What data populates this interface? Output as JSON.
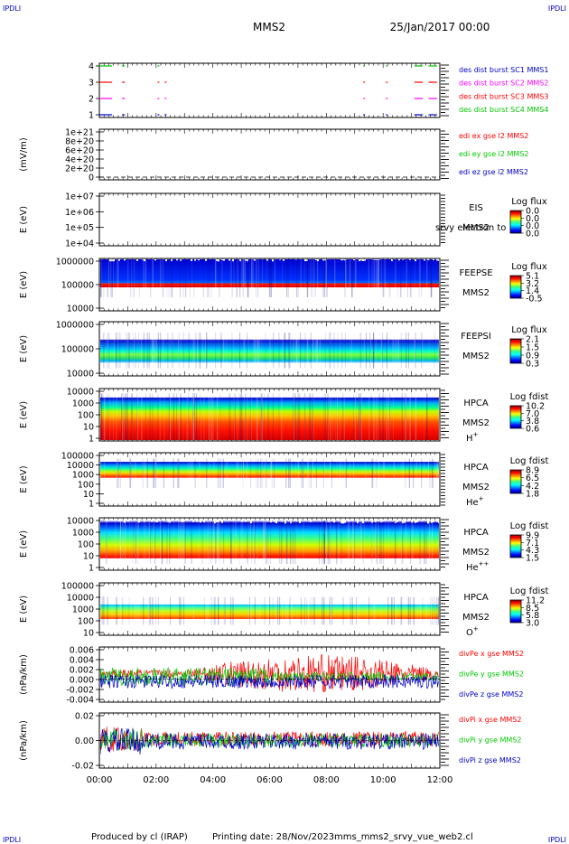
{
  "header": {
    "corner_left": "IPDLI",
    "corner_right": "IPDLI",
    "spacecraft": "MMS2",
    "date": "25/Jan/2017 00:00"
  },
  "footer": {
    "corner_left": "IPDLI",
    "corner_right": "IPDLI",
    "produced_by": "Produced by cl (IRAP)",
    "printing_date": "Printing date: 28/Nov/2023",
    "filename": "mms_mms2_srvy_vue_web2.cl"
  },
  "colors": {
    "black": "#000000",
    "red": "#ff0000",
    "green": "#00c800",
    "blue": "#0000c8",
    "magenta": "#ff00ff"
  },
  "chart_data": {
    "type": "multi-panel time series",
    "xaxis": {
      "ticks": [
        "00:00",
        "02:00",
        "04:00",
        "06:00",
        "08:00",
        "10:00",
        "12:00"
      ],
      "range_hours": [
        0,
        12
      ]
    },
    "panels": [
      {
        "id": "burst",
        "type": "timeline",
        "yticks": [
          "4",
          "3",
          "2",
          "1"
        ],
        "legend": [
          {
            "text": "des dist burst SC1 MMS1",
            "color": "#0000c8"
          },
          {
            "text": "des dist burst SC2 MMS2",
            "color": "#ff00ff"
          },
          {
            "text": "des dist burst SC3 MMS3",
            "color": "#ff0000"
          },
          {
            "text": "des dist burst SC4 MMS4",
            "color": "#00c800"
          }
        ],
        "segments": [
          {
            "row": 4,
            "color": "#00c800",
            "intervals": [
              [
                0.0,
                0.45
              ],
              [
                0.8,
                0.9
              ],
              [
                2.05,
                2.1
              ],
              [
                9.3,
                9.35
              ],
              [
                10.1,
                10.15
              ],
              [
                11.1,
                11.4
              ],
              [
                11.6,
                11.9
              ]
            ]
          },
          {
            "row": 3,
            "color": "#ff0000",
            "intervals": [
              [
                0.0,
                0.45
              ],
              [
                0.8,
                0.9
              ],
              [
                2.05,
                2.1
              ],
              [
                2.3,
                2.35
              ],
              [
                9.3,
                9.35
              ],
              [
                10.1,
                10.15
              ],
              [
                11.1,
                11.4
              ],
              [
                11.6,
                11.9
              ]
            ]
          },
          {
            "row": 2,
            "color": "#ff00ff",
            "intervals": [
              [
                0.0,
                0.45
              ],
              [
                0.8,
                0.9
              ],
              [
                2.05,
                2.1
              ],
              [
                2.3,
                2.35
              ],
              [
                9.3,
                9.35
              ],
              [
                10.1,
                10.15
              ],
              [
                11.1,
                11.4
              ],
              [
                11.6,
                11.9
              ]
            ]
          },
          {
            "row": 1,
            "color": "#0000c8",
            "intervals": [
              [
                0.0,
                0.45
              ],
              [
                0.8,
                0.9
              ],
              [
                2.05,
                2.1
              ],
              [
                2.3,
                2.35
              ],
              [
                9.3,
                9.35
              ],
              [
                10.1,
                10.15
              ],
              [
                11.1,
                11.4
              ],
              [
                11.6,
                11.9
              ]
            ]
          }
        ]
      },
      {
        "id": "edi",
        "type": "line",
        "ylabel": "(mV/m)",
        "yticks": [
          "1e+21",
          "8e+20",
          "6e+20",
          "4e+20",
          "2e+20",
          "0"
        ],
        "legend": [
          {
            "text": "edi ex gse l2 MMS2",
            "color": "#ff0000"
          },
          {
            "text": "edi ey gse l2 MMS2",
            "color": "#00c800"
          },
          {
            "text": "edi ez gse l2 MMS2",
            "color": "#0000c8"
          }
        ]
      },
      {
        "id": "eis",
        "type": "spectrogram",
        "ylabel": "E (eV)",
        "yticks": [
          "1e+07",
          "1e+06",
          "1e+05",
          "1e+04"
        ],
        "instrument": [
          "EIS",
          "MMS2"
        ],
        "overlap_text": "srvy electron to",
        "cbar_title": "Log flux",
        "cbar_ticks": [
          "0.0",
          "0.0",
          "0.0",
          "0.0"
        ]
      },
      {
        "id": "feepse",
        "type": "spectrogram",
        "ylabel": "E (eV)",
        "yticks": [
          "1000000",
          "100000",
          "10000"
        ],
        "instrument": [
          "FEEPSE",
          "MMS2"
        ],
        "cbar_title": "Log flux",
        "cbar_ticks": [
          "5.1",
          "3.2",
          "1.4",
          "-0.5"
        ]
      },
      {
        "id": "feepsi",
        "type": "spectrogram",
        "ylabel": "E (eV)",
        "yticks": [
          "1000000",
          "100000",
          "10000"
        ],
        "instrument": [
          "FEEPSI",
          "MMS2"
        ],
        "cbar_title": "Log flux",
        "cbar_ticks": [
          "2.1",
          "1.5",
          "0.9",
          "0.3"
        ]
      },
      {
        "id": "hpca_h",
        "type": "spectrogram",
        "ylabel": "E (eV)",
        "yticks": [
          "10000",
          "1000",
          "100",
          "10",
          "1"
        ],
        "instrument": [
          "HPCA",
          "MMS2"
        ],
        "species": "H",
        "charge": "+",
        "cbar_title": "Log fdist",
        "cbar_ticks": [
          "10.2",
          "7.0",
          "3.8",
          "0.6"
        ]
      },
      {
        "id": "hpca_he",
        "type": "spectrogram",
        "ylabel": "E (eV)",
        "yticks": [
          "100000",
          "10000",
          "1000",
          "100",
          "10",
          "1"
        ],
        "instrument": [
          "HPCA",
          "MMS2"
        ],
        "species": "He",
        "charge": "+",
        "cbar_title": "Log fdist",
        "cbar_ticks": [
          "8.9",
          "6.5",
          "4.2",
          "1.8"
        ]
      },
      {
        "id": "hpca_hepp",
        "type": "spectrogram",
        "ylabel": "E (eV)",
        "yticks": [
          "10000",
          "1000",
          "100",
          "10",
          "1"
        ],
        "instrument": [
          "HPCA",
          "MMS2"
        ],
        "species": "He",
        "charge": "++",
        "cbar_title": "Log fdist",
        "cbar_ticks": [
          "9.9",
          "7.1",
          "4.3",
          "1.5"
        ]
      },
      {
        "id": "hpca_o",
        "type": "spectrogram",
        "ylabel": "E (eV)",
        "yticks": [
          "100000",
          "10000",
          "1000",
          "100",
          "10"
        ],
        "instrument": [
          "HPCA",
          "MMS2"
        ],
        "species": "O",
        "charge": "+",
        "cbar_title": "Log fdist",
        "cbar_ticks": [
          "11.2",
          "8.5",
          "5.8",
          "3.0"
        ]
      },
      {
        "id": "divpe",
        "type": "line",
        "ylabel": "(nPa/km)",
        "yticks": [
          "0.006",
          "0.004",
          "0.002",
          "0.000",
          "-0.002",
          "-0.004"
        ],
        "ylim": [
          -0.005,
          0.007
        ],
        "legend": [
          {
            "text": "divPe x gse MMS2",
            "color": "#ff0000"
          },
          {
            "text": "divPe y gse MMS2",
            "color": "#00c800"
          },
          {
            "text": "divPe z gse MMS2",
            "color": "#0000c8"
          }
        ]
      },
      {
        "id": "divpi",
        "type": "line",
        "ylabel": "(nPa/km)",
        "yticks": [
          "0.02",
          "0.00",
          "-0.02"
        ],
        "ylim": [
          -0.035,
          0.035
        ],
        "legend": [
          {
            "text": "divPi x gse MMS2",
            "color": "#ff0000"
          },
          {
            "text": "divPi y gse MMS2",
            "color": "#00c800"
          },
          {
            "text": "divPi z gse MMS2",
            "color": "#0000c8"
          }
        ]
      }
    ]
  }
}
